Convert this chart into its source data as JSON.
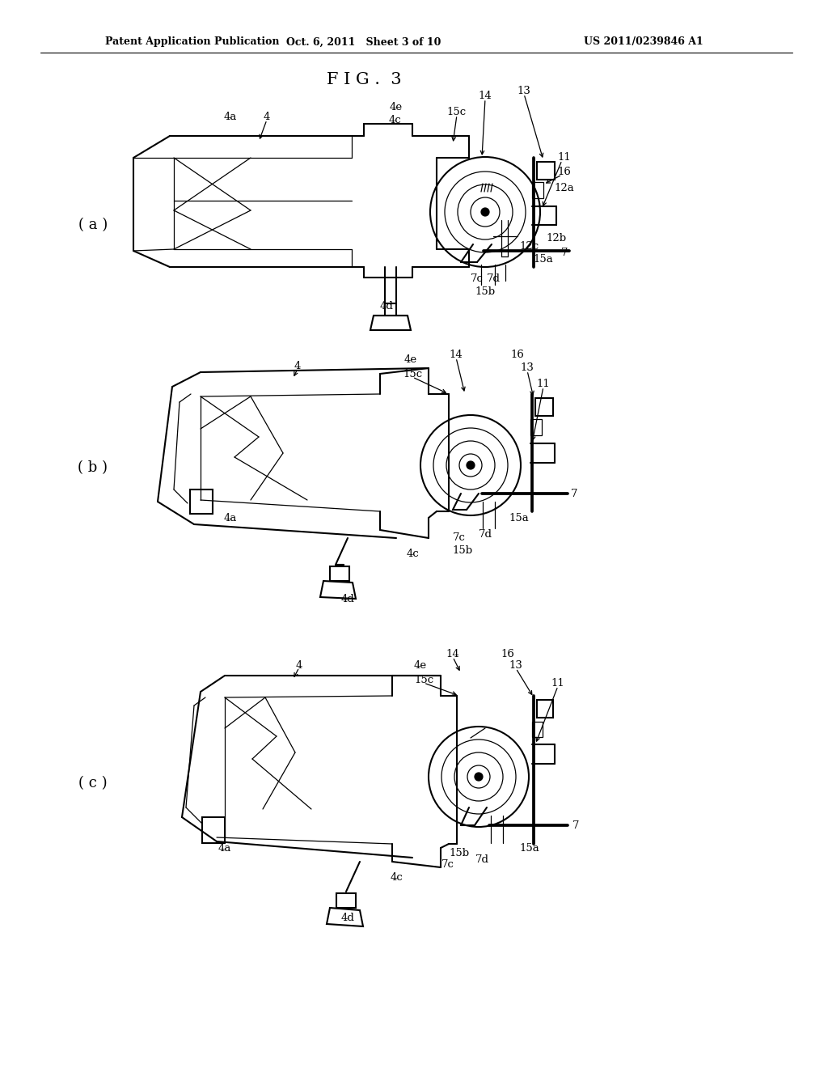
{
  "title": "F I G .  3",
  "header_left": "Patent Application Publication",
  "header_center": "Oct. 6, 2011   Sheet 3 of 10",
  "header_right": "US 2011/0239846 A1",
  "background_color": "#ffffff",
  "subfig_labels": [
    "( a )",
    "( b )",
    "( c )"
  ],
  "fig_width": 10.24,
  "fig_height": 13.2,
  "line_color": "#000000",
  "annotation_fontsize": 9.5,
  "header_fontsize": 9,
  "title_fontsize": 15,
  "subfig_label_fontsize": 13
}
